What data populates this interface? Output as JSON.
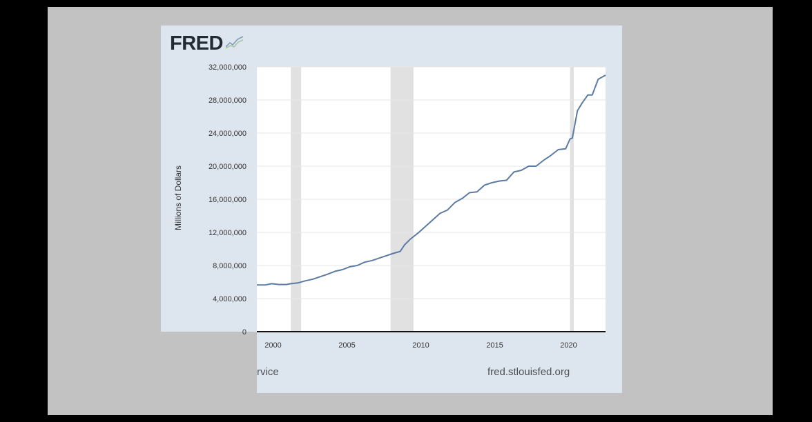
{
  "logo": {
    "text": "FRED",
    "icon": "line-chart-icon"
  },
  "footer": {
    "source_text": "rvice",
    "site": "fred.stlouisfed.org"
  },
  "colors": {
    "line": "#5b7aa3",
    "recession": "#e1e1e1",
    "plot_bg": "#ffffff",
    "panel_bg": "#dde6ef",
    "frame_bg": "#c2c2c2"
  },
  "chart_data": {
    "type": "line",
    "ylabel": "Millions of Dollars",
    "xlabel": "",
    "xlim": [
      1998.9,
      2022.5
    ],
    "ylim": [
      0,
      32000000
    ],
    "y_ticks": [
      0,
      4000000,
      8000000,
      12000000,
      16000000,
      20000000,
      24000000,
      28000000,
      32000000
    ],
    "y_tick_labels": [
      "0",
      "4,000,000",
      "8,000,000",
      "12,000,000",
      "16,000,000",
      "20,000,000",
      "24,000,000",
      "28,000,000",
      "32,000,000"
    ],
    "x_ticks": [
      2000,
      2005,
      2010,
      2015,
      2020
    ],
    "x_tick_labels": [
      "2000",
      "2005",
      "2010",
      "2015",
      "2020"
    ],
    "grid": "horizontal",
    "recessions": [
      [
        2001.2,
        2001.9
      ],
      [
        2007.95,
        2009.5
      ],
      [
        2020.1,
        2020.35
      ]
    ],
    "series": [
      {
        "x": [
          1998.9,
          1999.5,
          1999.9,
          2000.4,
          2000.9,
          2001.2,
          2001.7,
          2002.2,
          2002.7,
          2003.2,
          2003.7,
          2004.2,
          2004.7,
          2005.2,
          2005.7,
          2006.2,
          2006.7,
          2007.2,
          2007.7,
          2008.2,
          2008.6,
          2008.9,
          2009.3,
          2009.8,
          2010.3,
          2010.8,
          2011.3,
          2011.8,
          2012.3,
          2012.8,
          2013.3,
          2013.8,
          2014.3,
          2014.8,
          2015.3,
          2015.8,
          2016.3,
          2016.8,
          2017.3,
          2017.8,
          2018.3,
          2018.8,
          2019.3,
          2019.8,
          2020.1,
          2020.25,
          2020.6,
          2020.9,
          2021.3,
          2021.6,
          2022.0,
          2022.5
        ],
        "y": [
          5650000,
          5650000,
          5800000,
          5700000,
          5700000,
          5800000,
          5900000,
          6150000,
          6350000,
          6650000,
          6950000,
          7300000,
          7500000,
          7850000,
          8000000,
          8400000,
          8600000,
          8900000,
          9200000,
          9500000,
          9700000,
          10500000,
          11200000,
          11900000,
          12700000,
          13500000,
          14300000,
          14700000,
          15600000,
          16100000,
          16800000,
          16900000,
          17700000,
          18000000,
          18200000,
          18300000,
          19300000,
          19500000,
          20000000,
          20000000,
          20700000,
          21300000,
          22000000,
          22100000,
          23300000,
          23400000,
          26700000,
          27600000,
          28600000,
          28600000,
          30500000,
          31000000
        ]
      }
    ]
  }
}
